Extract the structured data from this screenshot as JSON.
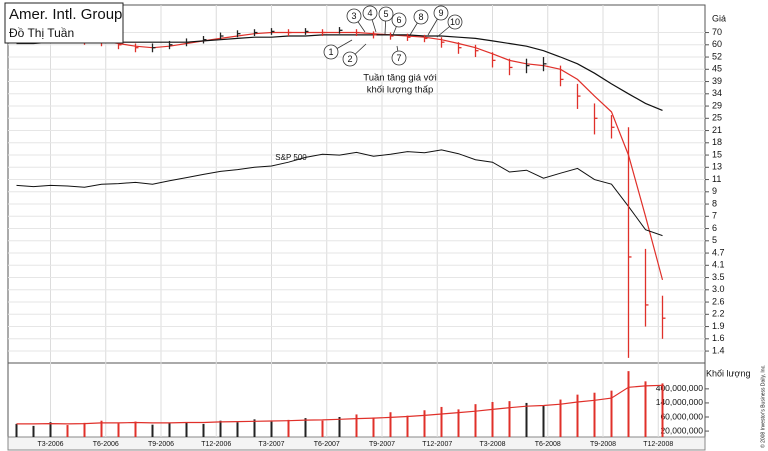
{
  "chart_data": [
    {
      "type": "ohlc",
      "title": "Amer. Intl. Group",
      "subtitle": "Đồ Thị Tuần",
      "y_label": "Giá",
      "log_scale": true,
      "grid": true,
      "up_color": "#222222",
      "down_color": "#e0302a",
      "x": [
        2,
        6,
        10,
        14,
        18,
        22,
        26,
        30,
        34,
        38,
        42,
        46,
        50,
        54,
        58,
        62,
        66,
        70,
        74,
        78,
        82,
        86,
        90,
        94,
        98,
        102,
        106,
        110,
        114,
        118,
        122,
        126,
        130,
        134,
        138,
        142,
        146,
        150,
        154
      ],
      "high": [
        67,
        68,
        69,
        67,
        66,
        65,
        63,
        61,
        61,
        63,
        65,
        67,
        70,
        72,
        73,
        74,
        73,
        74,
        73,
        75,
        73,
        71,
        70,
        69,
        68,
        66,
        62,
        60,
        55,
        51,
        51,
        52,
        47,
        38,
        30,
        26,
        22,
        4.8,
        2.8
      ],
      "low": [
        61,
        62,
        63,
        61,
        60,
        59,
        57,
        55,
        55,
        57,
        59,
        61,
        64,
        66,
        67,
        68,
        67,
        68,
        67,
        69,
        67,
        65,
        64,
        63,
        62,
        58,
        54,
        52,
        46,
        42,
        43,
        44,
        37,
        28,
        20,
        19,
        1.3,
        1.9,
        1.6
      ],
      "close": [
        64,
        65,
        66,
        64,
        63,
        62,
        60,
        58,
        58,
        60,
        62,
        64,
        67,
        69,
        70,
        71,
        70,
        71,
        70,
        72,
        70,
        68,
        67,
        66,
        65,
        62,
        58,
        56,
        50,
        46,
        47,
        48,
        40,
        33,
        25,
        22,
        4.5,
        2.5,
        2.1
      ],
      "series": [
        {
          "name": "S&P 500",
          "color": "#111111",
          "values": [
            10,
            9.8,
            10,
            9.9,
            9.7,
            10.2,
            10.3,
            10.5,
            10.2,
            10.8,
            11.3,
            11.8,
            12.3,
            12.6,
            13,
            13.2,
            13.8,
            14.6,
            15.2,
            15,
            15.6,
            14.8,
            15.2,
            15.8,
            15.5,
            16.2,
            15.3,
            14.2,
            13.8,
            12.2,
            12.5,
            11.2,
            12,
            12.8,
            11,
            10.2,
            7.8,
            5.9,
            5.4
          ]
        }
      ],
      "lines": [
        {
          "color": "#e0302a",
          "values": [
            63,
            64,
            65,
            65,
            64,
            63,
            61,
            59,
            58,
            59,
            61,
            63,
            65,
            67,
            69,
            70,
            70,
            70,
            70,
            70,
            70,
            69,
            68,
            67,
            66,
            64,
            61,
            58,
            54,
            50,
            48,
            47,
            45,
            40,
            33,
            27,
            15,
            7,
            3.4
          ]
        },
        {
          "color": "#111111",
          "values": [
            61,
            61,
            62,
            62,
            62,
            62,
            62,
            62,
            62,
            62,
            62,
            63,
            64,
            65,
            66,
            66,
            67,
            67,
            68,
            68,
            68,
            68,
            68,
            68,
            67,
            67,
            66,
            65,
            63,
            61,
            59,
            56,
            52,
            48,
            43,
            38,
            34,
            30,
            27.5
          ]
        }
      ],
      "circled_labels": [
        "1",
        "2",
        "3",
        "4",
        "5",
        "6",
        "7",
        "8",
        "9",
        "10"
      ],
      "notes": [
        "Tuần tăng giá với",
        "khối lượng thấp"
      ],
      "xlim": [
        0,
        164
      ],
      "xticks": [
        {
          "value": 10,
          "label": "T3-2006"
        },
        {
          "value": 23,
          "label": "T6-2006"
        },
        {
          "value": 36,
          "label": "T9-2006"
        },
        {
          "value": 49,
          "label": "T12-2006"
        },
        {
          "value": 62,
          "label": "T3-2007"
        },
        {
          "value": 75,
          "label": "T6-2007"
        },
        {
          "value": 88,
          "label": "T9-2007"
        },
        {
          "value": 101,
          "label": "T12-2007"
        },
        {
          "value": 114,
          "label": "T3-2008"
        },
        {
          "value": 127,
          "label": "T6-2008"
        },
        {
          "value": 140,
          "label": "T9-2008"
        },
        {
          "value": 153,
          "label": "T12-2008"
        }
      ],
      "ylim": [
        1.27,
        99
      ],
      "yticks": [
        70,
        60,
        52,
        45,
        39,
        34,
        29,
        25,
        21,
        18,
        15,
        13,
        11,
        9,
        8,
        7,
        6,
        5,
        4.7,
        4.1,
        3.5,
        {
          "value": 3,
          "label": "3.0"
        },
        2.6,
        2.2,
        1.9,
        1.6,
        1.4
      ],
      "copyright": "© 2008 Investor's Business Daily, Inc."
    },
    {
      "type": "bar",
      "y_label": "Khối lượng",
      "log_scale": true,
      "x": [
        2,
        6,
        10,
        14,
        18,
        22,
        26,
        30,
        34,
        38,
        42,
        46,
        50,
        54,
        58,
        62,
        66,
        70,
        74,
        78,
        82,
        86,
        90,
        94,
        98,
        102,
        106,
        110,
        114,
        118,
        122,
        126,
        130,
        134,
        138,
        142,
        146,
        150,
        154
      ],
      "values": [
        35000000,
        30000000,
        40000000,
        32000000,
        38000000,
        45000000,
        36000000,
        42000000,
        33000000,
        38000000,
        40000000,
        35000000,
        45000000,
        40000000,
        50000000,
        42000000,
        48000000,
        55000000,
        45000000,
        60000000,
        70000000,
        58000000,
        80000000,
        65000000,
        90000000,
        110000000,
        95000000,
        130000000,
        150000000,
        160000000,
        140000000,
        120000000,
        180000000,
        260000000,
        300000000,
        350000000,
        1500000000,
        700000000,
        600000000
      ],
      "line": {
        "color": "#e0302a",
        "values": [
          35000000,
          35000000,
          36000000,
          35000000,
          36000000,
          38000000,
          38000000,
          39000000,
          38000000,
          38000000,
          39000000,
          39000000,
          41000000,
          42000000,
          43000000,
          44000000,
          45000000,
          47000000,
          48000000,
          50000000,
          53000000,
          55000000,
          58000000,
          62000000,
          66000000,
          72000000,
          78000000,
          85000000,
          95000000,
          105000000,
          115000000,
          120000000,
          130000000,
          150000000,
          170000000,
          200000000,
          450000000,
          500000000,
          520000000
        ]
      },
      "ylim": [
        12600000,
        2200000000
      ],
      "yticks": [
        {
          "value": 400000000,
          "label": "400,000,000"
        },
        {
          "value": 140000000,
          "label": "140,000,000"
        },
        {
          "value": 60000000,
          "label": "60,000,000"
        },
        {
          "value": 20000000,
          "label": "20,000,000"
        }
      ]
    }
  ]
}
